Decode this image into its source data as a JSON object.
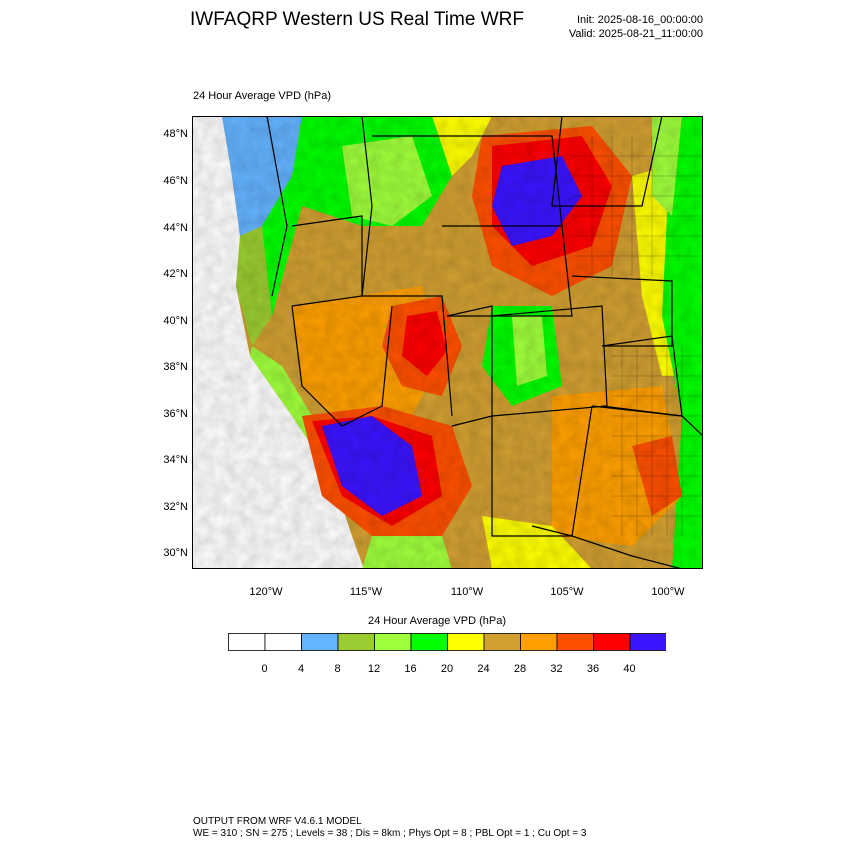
{
  "header": {
    "title": "IWFAQRP Western US Real Time WRF",
    "init": "Init: 2025-08-16_00:00:00",
    "valid": "Valid: 2025-08-21_11:00:00"
  },
  "map": {
    "field_label": "24 Hour Average VPD   (hPa)",
    "lat_labels": [
      "48°N",
      "46°N",
      "44°N",
      "42°N",
      "40°N",
      "38°N",
      "36°N",
      "34°N",
      "32°N",
      "30°N"
    ],
    "lon_labels": [
      "120°W",
      "115°W",
      "110°W",
      "105°W",
      "100°W"
    ]
  },
  "colorbar": {
    "title": "24 Hour Average VPD  (hPa)",
    "colors": [
      "#ffffff",
      "#ffffff",
      "#64b4ff",
      "#9bcd32",
      "#a0ff3c",
      "#00ff00",
      "#ffff00",
      "#d2a032",
      "#ffa000",
      "#ff5000",
      "#ff0000",
      "#3c14ff"
    ],
    "labels": [
      "0",
      "4",
      "8",
      "12",
      "16",
      "20",
      "24",
      "28",
      "32",
      "36",
      "40"
    ]
  },
  "footer": {
    "line1": "OUTPUT FROM WRF V4.6.1 MODEL",
    "line2": "WE = 310 ; SN = 275 ; Levels = 38 ; Dis = 8km ; Phys Opt = 8 ; PBL Opt = 1 ; Cu Opt = 3"
  }
}
